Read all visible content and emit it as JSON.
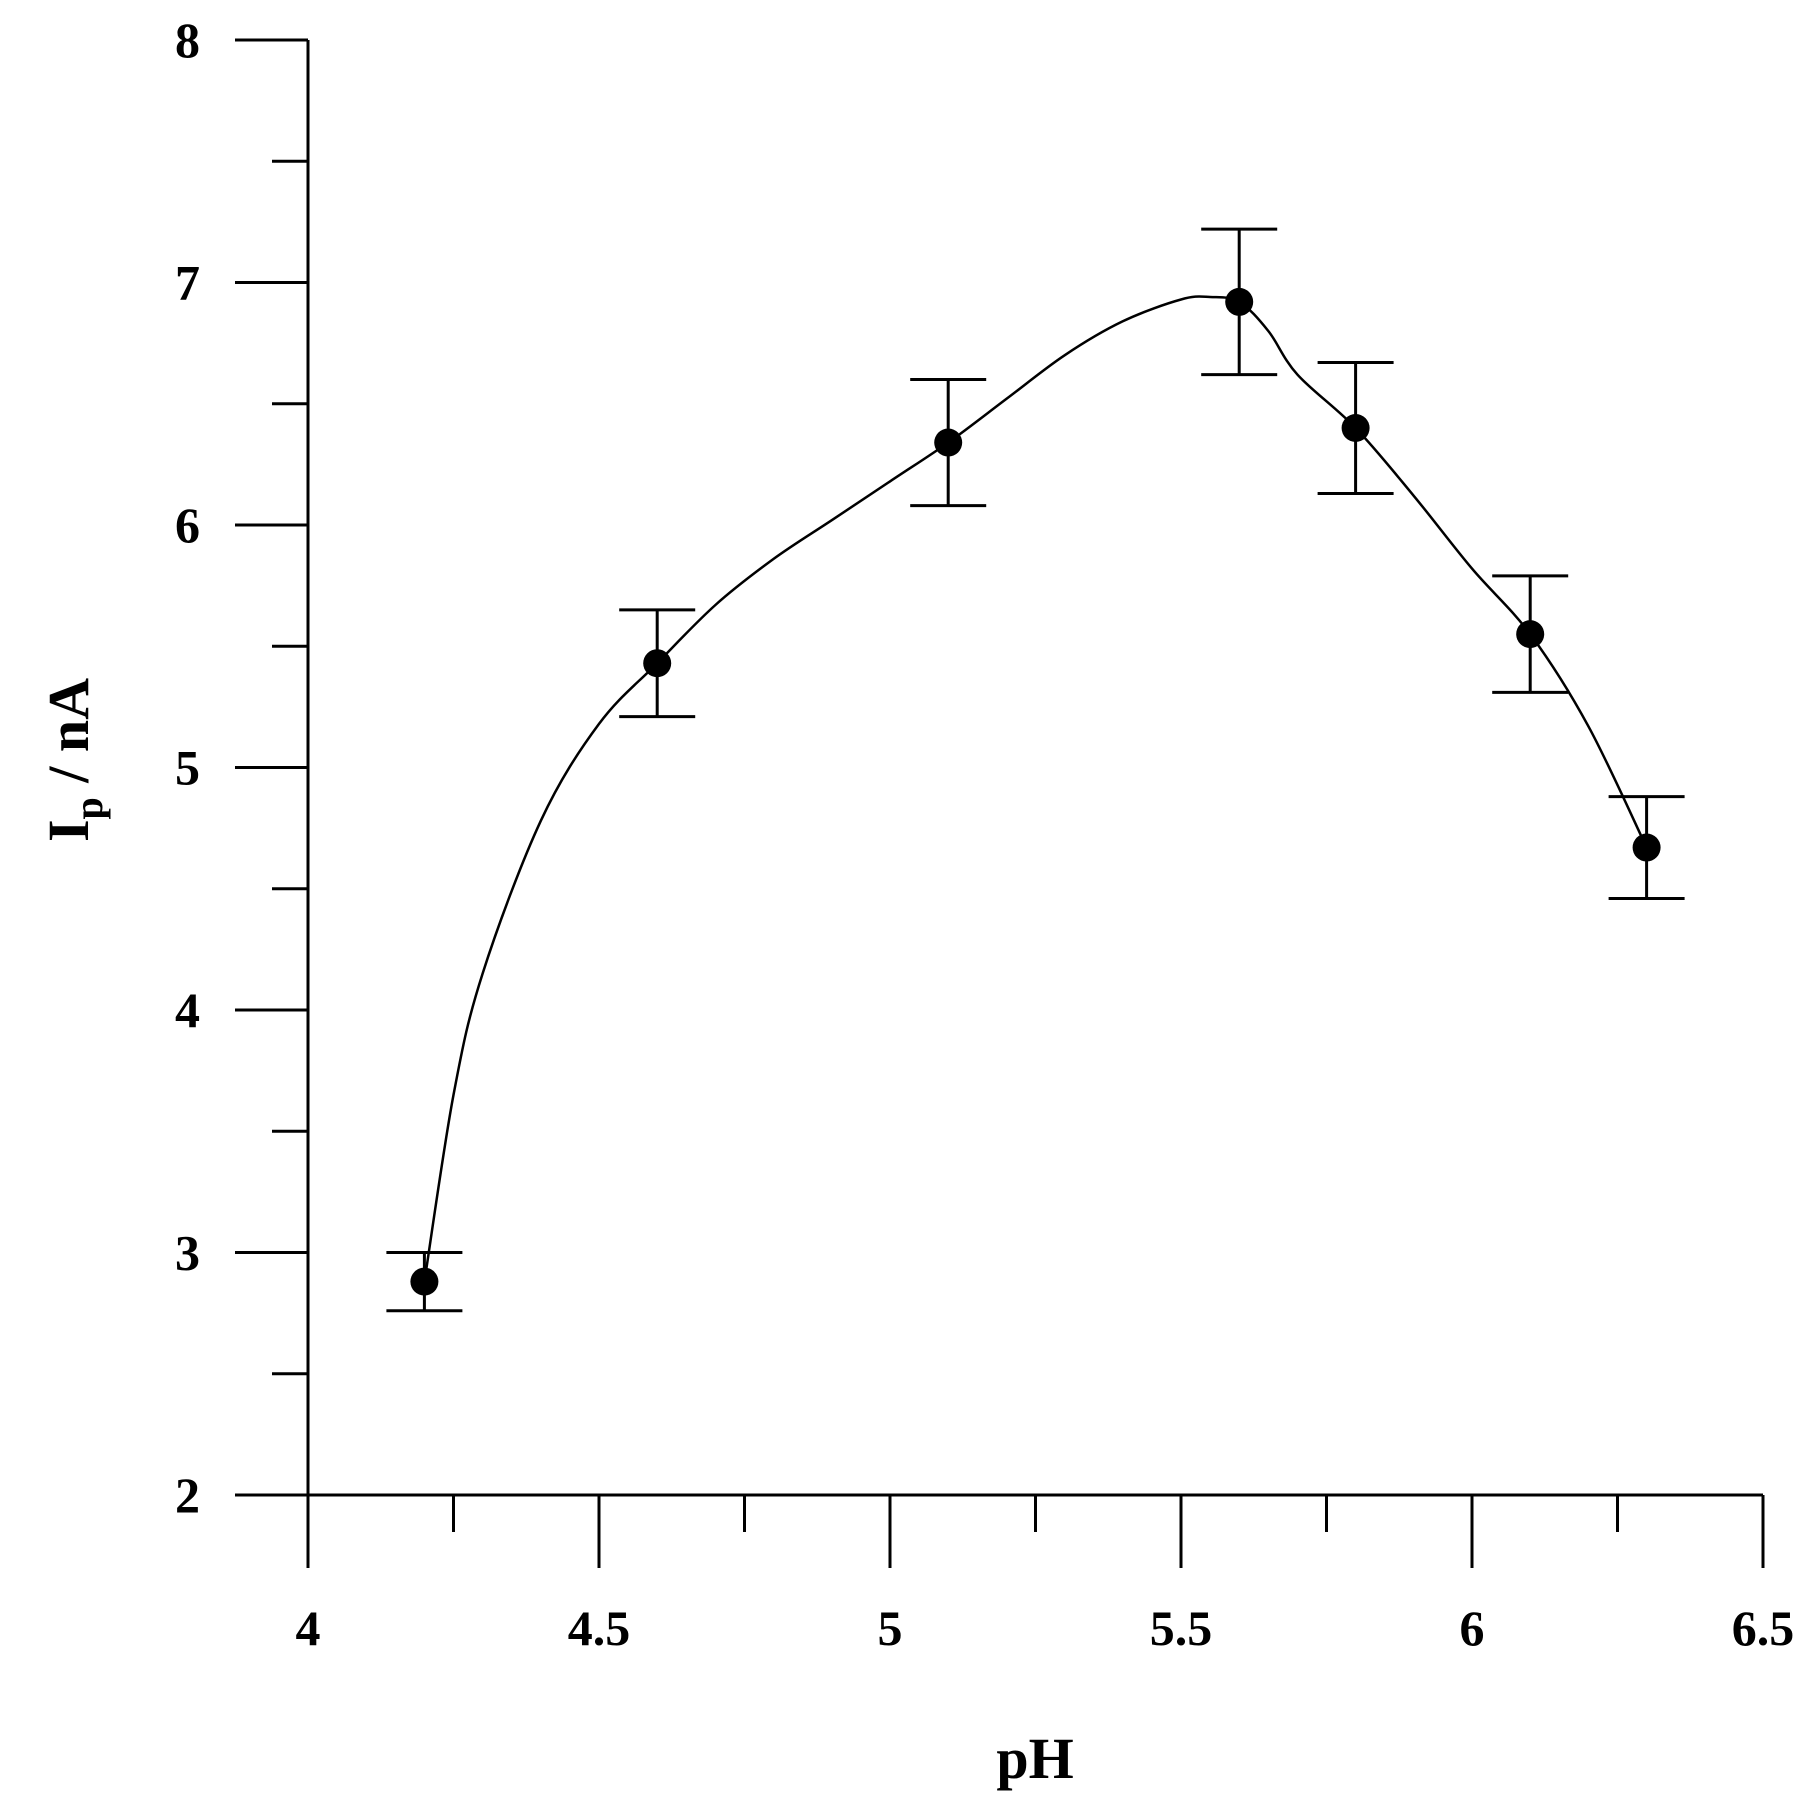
{
  "chart_data": {
    "type": "scatter",
    "xlabel": "pH",
    "ylabel": {
      "main": "I",
      "subscript": "p",
      "suffix": " / nA"
    },
    "xlim": [
      4,
      6.5
    ],
    "ylim": [
      2,
      8
    ],
    "x_ticks": [
      4,
      4.5,
      5,
      5.5,
      6,
      6.5
    ],
    "x_tick_labels": [
      "4",
      "4.5",
      "5",
      "5.5",
      "6",
      "6.5"
    ],
    "x_minor_ticks": [
      4.25,
      4.75,
      5.25,
      5.75,
      6.25
    ],
    "y_ticks": [
      2,
      3,
      4,
      5,
      6,
      7,
      8
    ],
    "y_tick_labels": [
      "2",
      "3",
      "4",
      "5",
      "6",
      "7",
      "8"
    ],
    "y_minor_ticks": [
      2.5,
      3.5,
      4.5,
      5.5,
      6.5,
      7.5
    ],
    "grid": false,
    "series": [
      {
        "x": [
          4.2,
          4.6,
          5.1,
          5.6,
          5.8,
          6.1,
          6.3
        ],
        "y": [
          2.88,
          5.43,
          6.34,
          6.92,
          6.4,
          5.55,
          4.67
        ],
        "error": [
          0.12,
          0.22,
          0.26,
          0.3,
          0.27,
          0.24,
          0.21
        ],
        "marker": "filled-circle",
        "color": "#000000"
      }
    ],
    "fit_curve": {
      "x": [
        4.2,
        4.25,
        4.3,
        4.4,
        4.5,
        4.6,
        4.7,
        4.8,
        4.9,
        5.0,
        5.1,
        5.2,
        5.3,
        5.4,
        5.5,
        5.55,
        5.6,
        5.65,
        5.7,
        5.8,
        5.9,
        6.0,
        6.1,
        6.2,
        6.3
      ],
      "y": [
        2.88,
        3.65,
        4.15,
        4.78,
        5.18,
        5.43,
        5.67,
        5.86,
        6.02,
        6.18,
        6.34,
        6.52,
        6.7,
        6.84,
        6.93,
        6.94,
        6.92,
        6.8,
        6.62,
        6.4,
        6.12,
        5.82,
        5.55,
        5.17,
        4.67
      ],
      "color": "#000000"
    }
  }
}
